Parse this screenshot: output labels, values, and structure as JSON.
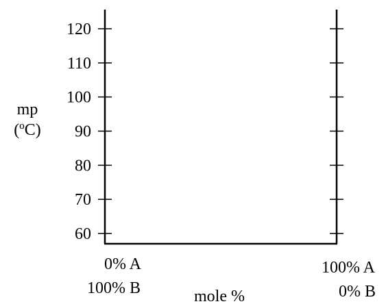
{
  "chart_data": {
    "type": "line",
    "title": "",
    "ylabel_line1": "mp",
    "ylabel_line2": "(ºC)",
    "xlabel": "mole %",
    "ylim": [
      60,
      120
    ],
    "yticks": [
      60,
      70,
      80,
      90,
      100,
      110,
      120
    ],
    "ytick_labels": [
      "60",
      "70",
      "80",
      "90",
      "100",
      "110",
      "120"
    ],
    "x_ends": {
      "left": {
        "line1": "0% A",
        "line2": "100% B"
      },
      "right": {
        "line1": "100% A",
        "line2": "0% B"
      }
    },
    "series": [],
    "grid": false,
    "legend": "none"
  }
}
